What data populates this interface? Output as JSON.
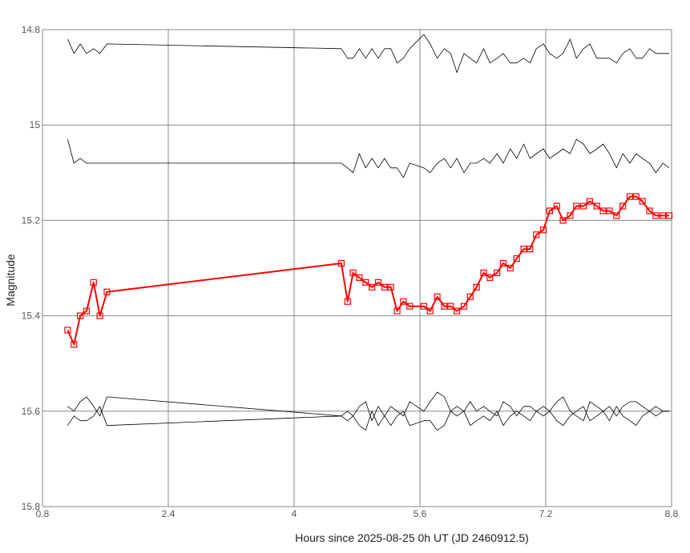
{
  "chart_data": {
    "type": "line",
    "title": "",
    "xlabel": "Hours since 2025-08-25 0h UT (JD 2460912.5)",
    "ylabel": "Magnitude",
    "xlim": [
      0.8,
      8.8
    ],
    "ylim": [
      15.8,
      14.8
    ],
    "y_inverted": true,
    "grid": true,
    "xticks": [
      "0.8",
      "2.4",
      "4",
      "5.6",
      "7.2",
      "8.8"
    ],
    "yticks": [
      "14.8",
      "15",
      "15.2",
      "15.4",
      "15.6",
      "15.8"
    ],
    "colors": {
      "target": "#ff0000",
      "comparison": "#000000",
      "grid": "#888888"
    },
    "series": [
      {
        "role": "target",
        "marker": "square",
        "x": [
          1.12,
          1.2,
          1.28,
          1.36,
          1.45,
          1.53,
          1.62,
          4.6,
          4.68,
          4.75,
          4.83,
          4.91,
          4.99,
          5.07,
          5.15,
          5.23,
          5.31,
          5.39,
          5.47,
          5.65,
          5.73,
          5.82,
          5.91,
          5.99,
          6.07,
          6.16,
          6.24,
          6.32,
          6.41,
          6.49,
          6.58,
          6.66,
          6.75,
          6.83,
          6.92,
          7.0,
          7.08,
          7.17,
          7.25,
          7.34,
          7.42,
          7.51,
          7.59,
          7.68,
          7.76,
          7.85,
          7.93,
          8.01,
          8.1,
          8.18,
          8.27,
          8.35,
          8.43,
          8.52,
          8.6,
          8.69,
          8.77
        ],
        "values": [
          15.43,
          15.46,
          15.4,
          15.39,
          15.33,
          15.4,
          15.35,
          15.29,
          15.37,
          15.31,
          15.32,
          15.33,
          15.34,
          15.33,
          15.34,
          15.34,
          15.39,
          15.37,
          15.38,
          15.38,
          15.39,
          15.36,
          15.38,
          15.38,
          15.39,
          15.38,
          15.36,
          15.34,
          15.31,
          15.32,
          15.31,
          15.29,
          15.3,
          15.28,
          15.26,
          15.26,
          15.23,
          15.22,
          15.18,
          15.17,
          15.2,
          15.19,
          15.17,
          15.17,
          15.16,
          15.17,
          15.18,
          15.18,
          15.19,
          15.17,
          15.15,
          15.15,
          15.16,
          15.18,
          15.19,
          15.19,
          15.19
        ]
      },
      {
        "role": "comparison",
        "x": [
          1.12,
          1.2,
          1.28,
          1.36,
          1.45,
          1.53,
          1.62,
          4.6,
          4.68,
          4.75,
          4.83,
          4.91,
          4.99,
          5.07,
          5.15,
          5.23,
          5.31,
          5.39,
          5.47,
          5.65,
          5.73,
          5.82,
          5.91,
          5.99,
          6.07,
          6.16,
          6.24,
          6.32,
          6.41,
          6.49,
          6.58,
          6.66,
          6.75,
          6.83,
          6.92,
          7.0,
          7.08,
          7.17,
          7.25,
          7.34,
          7.42,
          7.51,
          7.59,
          7.68,
          7.76,
          7.85,
          7.93,
          8.01,
          8.1,
          8.18,
          8.27,
          8.35,
          8.43,
          8.52,
          8.6,
          8.69,
          8.77
        ],
        "values": [
          14.82,
          14.85,
          14.83,
          14.85,
          14.84,
          14.85,
          14.83,
          14.84,
          14.86,
          14.86,
          14.84,
          14.86,
          14.84,
          14.86,
          14.84,
          14.84,
          14.87,
          14.86,
          14.84,
          14.81,
          14.83,
          14.86,
          14.84,
          14.85,
          14.89,
          14.85,
          14.86,
          14.87,
          14.84,
          14.87,
          14.86,
          14.85,
          14.87,
          14.87,
          14.86,
          14.87,
          14.84,
          14.83,
          14.85,
          14.86,
          14.85,
          14.82,
          14.86,
          14.84,
          14.83,
          14.86,
          14.86,
          14.86,
          14.87,
          14.85,
          14.84,
          14.86,
          14.86,
          14.84,
          14.85,
          14.85,
          14.85
        ]
      },
      {
        "role": "comparison",
        "x": [
          1.12,
          1.2,
          1.28,
          1.36,
          1.45,
          1.53,
          1.62,
          4.6,
          4.68,
          4.75,
          4.83,
          4.91,
          4.99,
          5.07,
          5.15,
          5.23,
          5.31,
          5.39,
          5.47,
          5.65,
          5.73,
          5.82,
          5.91,
          5.99,
          6.07,
          6.16,
          6.24,
          6.32,
          6.41,
          6.49,
          6.58,
          6.66,
          6.75,
          6.83,
          6.92,
          7.0,
          7.08,
          7.17,
          7.25,
          7.34,
          7.42,
          7.51,
          7.59,
          7.68,
          7.76,
          7.85,
          7.93,
          8.01,
          8.1,
          8.18,
          8.27,
          8.35,
          8.43,
          8.52,
          8.6,
          8.69,
          8.77
        ],
        "values": [
          15.03,
          15.08,
          15.07,
          15.08,
          15.08,
          15.08,
          15.08,
          15.08,
          15.09,
          15.1,
          15.06,
          15.09,
          15.07,
          15.09,
          15.07,
          15.09,
          15.09,
          15.11,
          15.08,
          15.09,
          15.1,
          15.08,
          15.07,
          15.09,
          15.07,
          15.1,
          15.08,
          15.08,
          15.07,
          15.08,
          15.06,
          15.08,
          15.05,
          15.07,
          15.04,
          15.07,
          15.06,
          15.05,
          15.07,
          15.06,
          15.05,
          15.06,
          15.03,
          15.04,
          15.06,
          15.05,
          15.04,
          15.06,
          15.09,
          15.06,
          15.08,
          15.06,
          15.07,
          15.08,
          15.1,
          15.08,
          15.09
        ]
      },
      {
        "role": "comparison",
        "x": [
          1.12,
          1.2,
          1.28,
          1.36,
          1.45,
          1.53,
          1.62,
          4.6,
          4.68,
          4.75,
          4.83,
          4.91,
          4.99,
          5.07,
          5.15,
          5.23,
          5.31,
          5.39,
          5.47,
          5.65,
          5.73,
          5.82,
          5.91,
          5.99,
          6.07,
          6.16,
          6.24,
          6.32,
          6.41,
          6.49,
          6.58,
          6.66,
          6.75,
          6.83,
          6.92,
          7.0,
          7.08,
          7.17,
          7.25,
          7.34,
          7.42,
          7.51,
          7.59,
          7.68,
          7.76,
          7.85,
          7.93,
          8.01,
          8.1,
          8.18,
          8.27,
          8.35,
          8.43,
          8.52,
          8.6,
          8.69,
          8.77
        ],
        "values": [
          15.59,
          15.6,
          15.58,
          15.57,
          15.59,
          15.61,
          15.57,
          15.61,
          15.6,
          15.61,
          15.59,
          15.58,
          15.62,
          15.59,
          15.61,
          15.59,
          15.6,
          15.61,
          15.58,
          15.6,
          15.58,
          15.56,
          15.57,
          15.6,
          15.59,
          15.6,
          15.58,
          15.6,
          15.59,
          15.6,
          15.61,
          15.58,
          15.59,
          15.61,
          15.59,
          15.59,
          15.6,
          15.61,
          15.6,
          15.58,
          15.57,
          15.6,
          15.61,
          15.62,
          15.58,
          15.59,
          15.6,
          15.59,
          15.61,
          15.59,
          15.58,
          15.58,
          15.59,
          15.6,
          15.61,
          15.6,
          15.6
        ]
      },
      {
        "role": "comparison",
        "x": [
          1.12,
          1.2,
          1.28,
          1.36,
          1.45,
          1.53,
          1.62,
          4.6,
          4.68,
          4.75,
          4.83,
          4.91,
          4.99,
          5.07,
          5.15,
          5.23,
          5.31,
          5.39,
          5.47,
          5.65,
          5.73,
          5.82,
          5.91,
          5.99,
          6.07,
          6.16,
          6.24,
          6.32,
          6.41,
          6.49,
          6.58,
          6.66,
          6.75,
          6.83,
          6.92,
          7.0,
          7.08,
          7.17,
          7.25,
          7.34,
          7.42,
          7.51,
          7.59,
          7.68,
          7.76,
          7.85,
          7.93,
          8.01,
          8.1,
          8.18,
          8.27,
          8.35,
          8.43,
          8.52,
          8.6,
          8.69,
          8.77
        ],
        "values": [
          15.63,
          15.61,
          15.62,
          15.62,
          15.61,
          15.59,
          15.63,
          15.61,
          15.62,
          15.61,
          15.63,
          15.64,
          15.6,
          15.63,
          15.61,
          15.63,
          15.61,
          15.6,
          15.63,
          15.62,
          15.62,
          15.64,
          15.63,
          15.6,
          15.61,
          15.6,
          15.63,
          15.62,
          15.61,
          15.62,
          15.6,
          15.63,
          15.61,
          15.6,
          15.61,
          15.62,
          15.6,
          15.59,
          15.6,
          15.62,
          15.63,
          15.61,
          15.6,
          15.59,
          15.62,
          15.61,
          15.6,
          15.62,
          15.59,
          15.61,
          15.62,
          15.63,
          15.61,
          15.6,
          15.59,
          15.6,
          15.6
        ]
      }
    ]
  }
}
